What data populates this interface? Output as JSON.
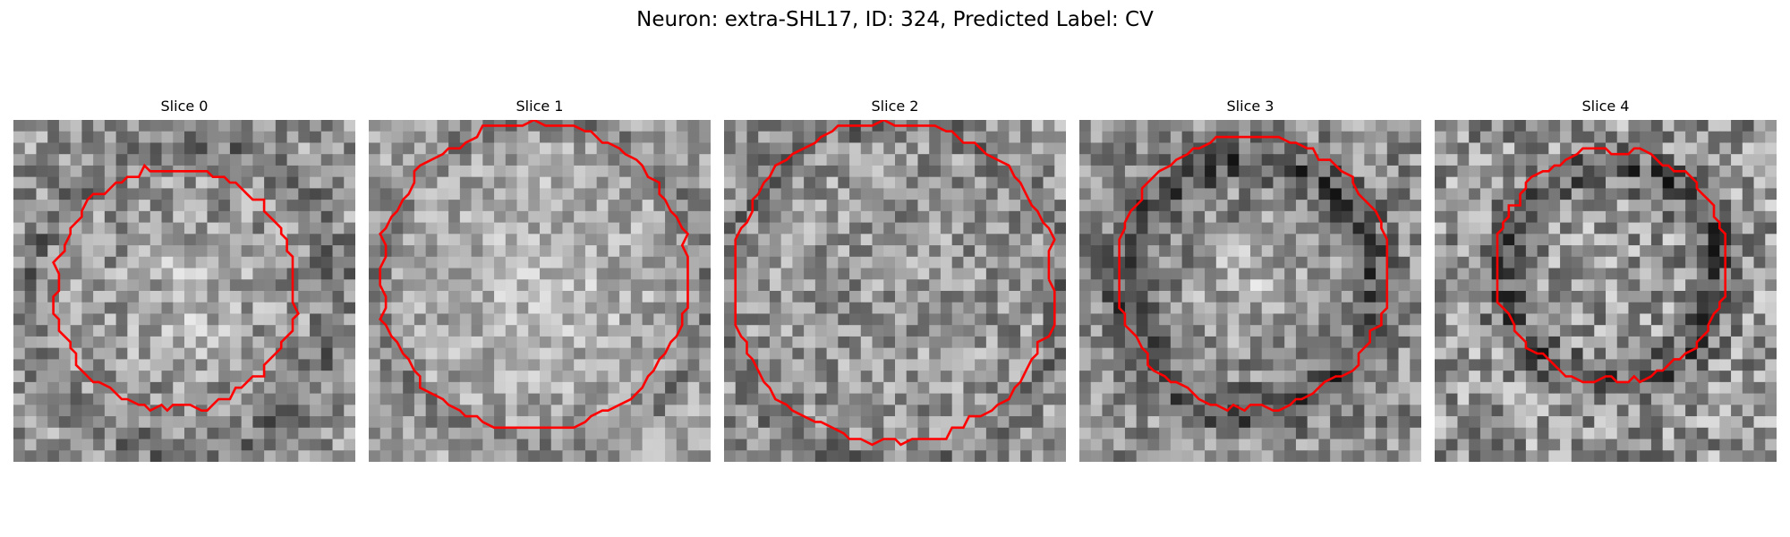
{
  "figure": {
    "title": "Neuron: extra-SHL17, ID: 324, Predicted Label: CV"
  },
  "colors": {
    "contour": "#ff0000",
    "colormap": "gray"
  },
  "slices": [
    {
      "title": "Slice 0"
    },
    {
      "title": "Slice 1"
    },
    {
      "title": "Slice 2"
    },
    {
      "title": "Slice 3"
    },
    {
      "title": "Slice 4"
    }
  ]
}
